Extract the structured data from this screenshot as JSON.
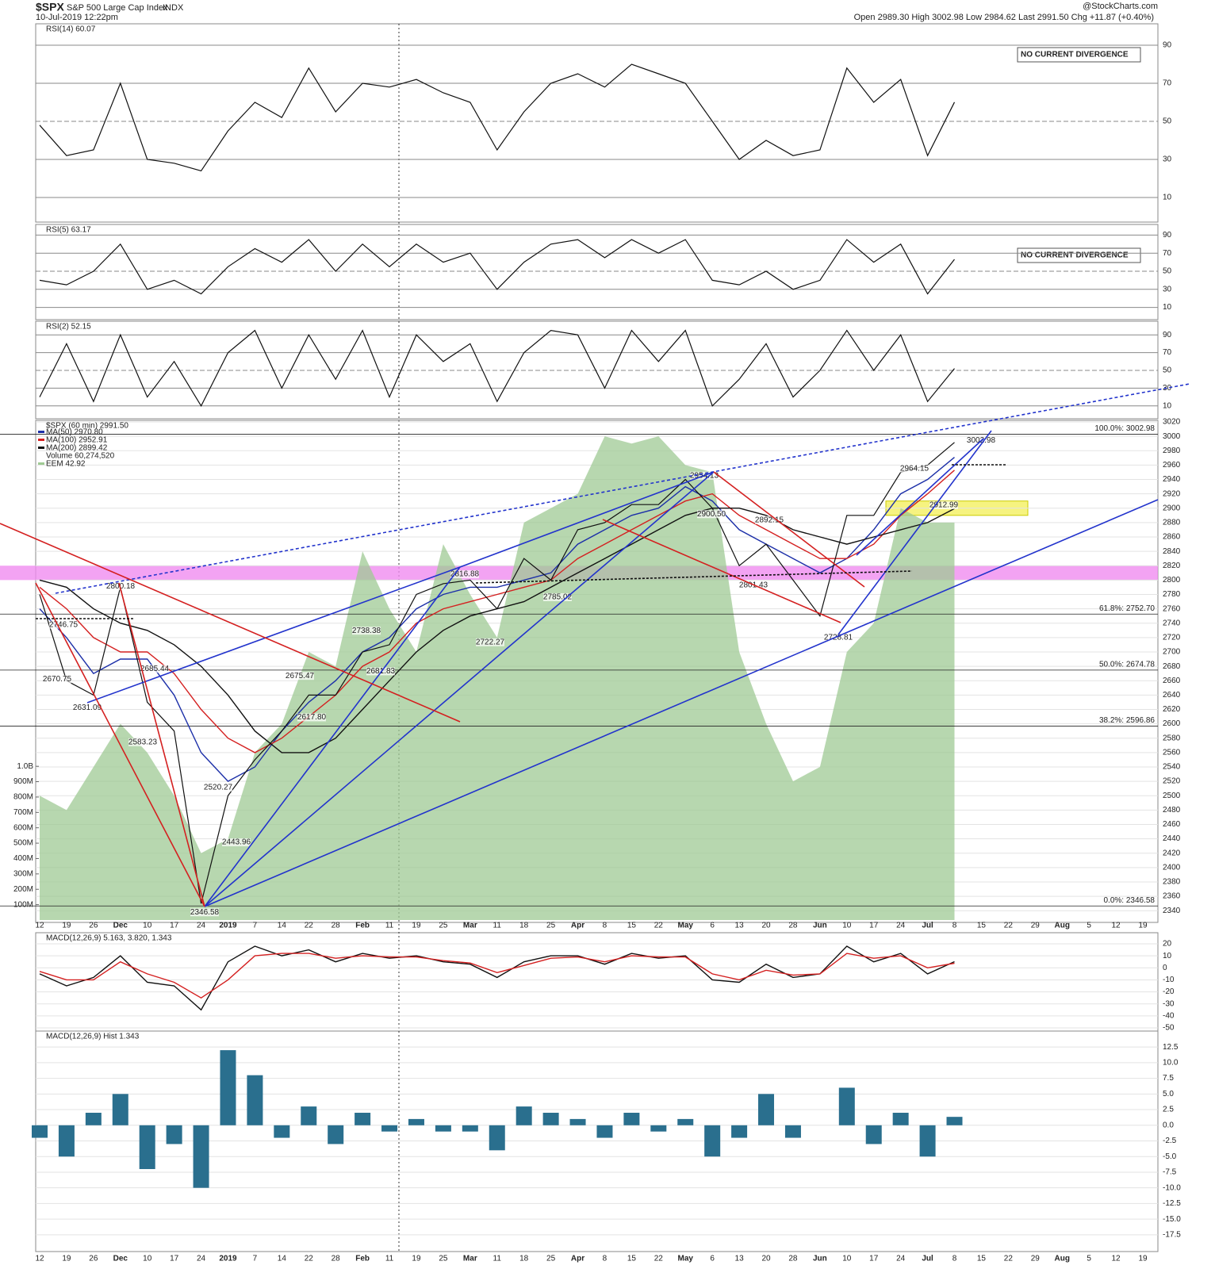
{
  "header": {
    "symbol": "$SPX",
    "name": "S&P 500 Large Cap Index",
    "exchange": "INDX",
    "date": "10-Jul-2019 12:22pm",
    "quote": "Open 2989.30  High 3002.98  Low 2984.62  Last 2991.50  Chg +11.87 (+0.40%)",
    "credit": "@StockCharts.com"
  },
  "chart_data": [
    {
      "type": "line",
      "title": "RSI(14) 60.07",
      "annotation": "NO CURRENT DIVERGENCE",
      "ylim": [
        0,
        100
      ],
      "yticks": [
        10,
        30,
        50,
        70,
        90
      ],
      "color": "#111111",
      "values": [
        48,
        32,
        35,
        70,
        30,
        28,
        24,
        45,
        60,
        52,
        78,
        55,
        70,
        68,
        72,
        65,
        60,
        35,
        55,
        70,
        75,
        68,
        80,
        75,
        70,
        50,
        30,
        40,
        32,
        35,
        78,
        60,
        72,
        32,
        60.07,
        null,
        null,
        null,
        null,
        null,
        null,
        null
      ]
    },
    {
      "type": "line",
      "title": "RSI(5) 63.17",
      "annotation": "NO CURRENT DIVERGENCE",
      "ylim": [
        0,
        100
      ],
      "yticks": [
        10,
        30,
        50,
        70,
        90
      ],
      "color": "#111111",
      "values": [
        40,
        35,
        50,
        80,
        30,
        40,
        25,
        55,
        75,
        60,
        85,
        50,
        80,
        55,
        80,
        60,
        70,
        30,
        60,
        80,
        85,
        65,
        85,
        70,
        85,
        40,
        35,
        50,
        30,
        40,
        85,
        60,
        80,
        25,
        63.17,
        null,
        null,
        null,
        null,
        null,
        null,
        null
      ]
    },
    {
      "type": "line",
      "title": "RSI(2) 52.15",
      "ylim": [
        0,
        100
      ],
      "yticks": [
        10,
        30,
        50,
        70,
        90
      ],
      "color": "#111111",
      "values": [
        20,
        80,
        15,
        90,
        20,
        60,
        10,
        70,
        95,
        30,
        90,
        40,
        95,
        20,
        90,
        60,
        80,
        15,
        70,
        95,
        90,
        30,
        95,
        60,
        95,
        10,
        40,
        80,
        20,
        50,
        95,
        50,
        90,
        15,
        52.15,
        null,
        null,
        null,
        null,
        null,
        null,
        null
      ]
    },
    {
      "type": "line",
      "title": "$SPX (60 min) 2991.50",
      "color": "#111111",
      "categories": [
        "12",
        "19",
        "26",
        "Dec",
        "10",
        "17",
        "24",
        "2019",
        "7",
        "14",
        "22",
        "28",
        "Feb",
        "11",
        "19",
        "25",
        "Mar",
        "11",
        "18",
        "25",
        "Apr",
        "8",
        "15",
        "22",
        "May",
        "6",
        "13",
        "20",
        "28",
        "Jun",
        "10",
        "17",
        "24",
        "Jul",
        "8",
        "15",
        "22",
        "29",
        "Aug",
        "5",
        "12",
        "19"
      ],
      "values": [
        2780,
        2660,
        2640,
        2790,
        2630,
        2590,
        2350,
        2500,
        2550,
        2590,
        2640,
        2640,
        2700,
        2710,
        2780,
        2795,
        2800,
        2760,
        2830,
        2800,
        2870,
        2880,
        2905,
        2905,
        2940,
        2900,
        2820,
        2850,
        2800,
        2750,
        2890,
        2890,
        2950,
        2960,
        2991.5,
        null,
        null,
        null,
        null,
        null,
        null,
        null
      ],
      "series": [
        {
          "name": "MA(50) 2970.80",
          "color": "#1c2fa8",
          "values": [
            2760,
            2720,
            2670,
            2690,
            2690,
            2640,
            2560,
            2520,
            2540,
            2590,
            2630,
            2660,
            2700,
            2720,
            2760,
            2780,
            2790,
            2790,
            2800,
            2810,
            2850,
            2870,
            2890,
            2900,
            2930,
            2910,
            2870,
            2850,
            2830,
            2810,
            2830,
            2870,
            2920,
            2940,
            2970.8,
            null,
            null,
            null,
            null,
            null,
            null,
            null
          ]
        },
        {
          "name": "MA(100) 2952.91",
          "color": "#d42020",
          "values": [
            2790,
            2760,
            2720,
            2700,
            2700,
            2670,
            2620,
            2580,
            2560,
            2580,
            2610,
            2640,
            2680,
            2700,
            2740,
            2760,
            2770,
            2780,
            2790,
            2800,
            2830,
            2850,
            2870,
            2890,
            2910,
            2920,
            2890,
            2870,
            2850,
            2830,
            2830,
            2850,
            2890,
            2920,
            2952.91,
            null,
            null,
            null,
            null,
            null,
            null,
            null
          ]
        },
        {
          "name": "MA(200) 2899.42",
          "color": "#111111",
          "values": [
            2800,
            2790,
            2760,
            2740,
            2730,
            2710,
            2680,
            2640,
            2590,
            2560,
            2560,
            2580,
            2620,
            2660,
            2700,
            2730,
            2750,
            2760,
            2770,
            2790,
            2810,
            2830,
            2850,
            2870,
            2890,
            2900,
            2900,
            2890,
            2870,
            2860,
            2850,
            2860,
            2870,
            2880,
            2899.42,
            null,
            null,
            null,
            null,
            null,
            null,
            null
          ]
        },
        {
          "name": "EEM 42.92",
          "type": "area",
          "color": "#9fca94",
          "values": [
            2500,
            2480,
            2540,
            2600,
            2560,
            2500,
            2420,
            2440,
            2560,
            2600,
            2700,
            2680,
            2840,
            2760,
            2700,
            2850,
            2780,
            2720,
            2880,
            2900,
            2920,
            3000,
            2990,
            3000,
            2960,
            2950,
            2700,
            2600,
            2520,
            2540,
            2700,
            2740,
            2900,
            2880,
            2880,
            null,
            null,
            null,
            null,
            null,
            null,
            null
          ]
        }
      ],
      "volume_legend": "Volume 60,274,520",
      "ylim": [
        2327,
        3020
      ],
      "yticks": [
        2340,
        2360,
        2380,
        2400,
        2420,
        2440,
        2460,
        2480,
        2500,
        2520,
        2540,
        2560,
        2580,
        2600,
        2620,
        2640,
        2660,
        2680,
        2700,
        2720,
        2740,
        2760,
        2780,
        2800,
        2820,
        2840,
        2860,
        2880,
        2900,
        2920,
        2940,
        2960,
        2980,
        3000,
        3020
      ],
      "y2lim": [
        0,
        3240000000
      ],
      "y2ticks": [
        {
          "value": 1000000000,
          "label": "1.0B"
        },
        {
          "value": 900000000,
          "label": "900M"
        },
        {
          "value": 800000000,
          "label": "800M"
        },
        {
          "value": 700000000,
          "label": "700M"
        },
        {
          "value": 600000000,
          "label": "600M"
        },
        {
          "value": 500000000,
          "label": "500M"
        },
        {
          "value": 400000000,
          "label": "400M"
        },
        {
          "value": 300000000,
          "label": "300M"
        },
        {
          "value": 200000000,
          "label": "200M"
        },
        {
          "value": 100000000,
          "label": "100M"
        }
      ],
      "zones": [
        {
          "from": 2800,
          "to": 2820,
          "color": "#f08cf0"
        },
        {
          "from": 2890,
          "to": 2910,
          "color": "#f4f060"
        }
      ],
      "fib_levels": [
        {
          "value": 3002.98,
          "label": "100.0%: 3002.98"
        },
        {
          "value": 2752.7,
          "label": "61.8%: 2752.70"
        },
        {
          "value": 2674.78,
          "label": "50.0%: 2674.78"
        },
        {
          "value": 2596.86,
          "label": "38.2%: 2596.86"
        },
        {
          "value": 2346.58,
          "label": "0.0%: 2346.58"
        }
      ],
      "annotations": [
        {
          "label": "2346.58",
          "value": 2346.58
        },
        {
          "label": "2443.96",
          "value": 2443.96
        },
        {
          "label": "2520.27",
          "value": 2520.27
        },
        {
          "label": "2583.23",
          "value": 2583.23
        },
        {
          "label": "2631.09",
          "value": 2631.09
        },
        {
          "label": "2670.75",
          "value": 2670.75
        },
        {
          "label": "2746.75",
          "value": 2746.75
        },
        {
          "label": "2800.18",
          "value": 2800.18
        },
        {
          "label": "2685.44",
          "value": 2685.44
        },
        {
          "label": "2675.47",
          "value": 2675.47
        },
        {
          "label": "2617.80",
          "value": 2617.8
        },
        {
          "label": "2738.38",
          "value": 2738.38
        },
        {
          "label": "2681.83",
          "value": 2681.83
        },
        {
          "label": "2816.88",
          "value": 2816.88
        },
        {
          "label": "2722.27",
          "value": 2722.27
        },
        {
          "label": "2785.02",
          "value": 2785.02
        },
        {
          "label": "2954.13",
          "value": 2954.13
        },
        {
          "label": "2900.50",
          "value": 2900.5
        },
        {
          "label": "2892.15",
          "value": 2892.15
        },
        {
          "label": "2801.43",
          "value": 2801.43
        },
        {
          "label": "2728.81",
          "value": 2728.81
        },
        {
          "label": "2964.15",
          "value": 2964.15
        },
        {
          "label": "2912.99",
          "value": 2912.99
        },
        {
          "label": "3002.98",
          "value": 3002.98
        }
      ]
    },
    {
      "type": "line",
      "title": "MACD(12,26,9) 5.163, 3.820, 1.343",
      "ylim": [
        -52.6,
        27.9
      ],
      "yticks": [
        -50,
        -40,
        -30,
        -20,
        -10,
        0,
        10,
        20
      ],
      "series": [
        {
          "name": "MACD",
          "color": "#111111",
          "values": [
            -5,
            -15,
            -8,
            10,
            -12,
            -15,
            -35,
            5,
            18,
            10,
            15,
            5,
            12,
            8,
            10,
            5,
            3,
            -8,
            5,
            10,
            10,
            3,
            12,
            8,
            10,
            -10,
            -12,
            3,
            -8,
            -5,
            18,
            5,
            12,
            -5,
            5.163,
            null,
            null,
            null,
            null,
            null,
            null,
            null
          ]
        },
        {
          "name": "Signal",
          "color": "#d42020",
          "values": [
            -3,
            -10,
            -10,
            5,
            -5,
            -12,
            -25,
            -10,
            10,
            12,
            12,
            8,
            10,
            9,
            9,
            6,
            4,
            -4,
            2,
            8,
            9,
            5,
            10,
            9,
            9,
            -5,
            -10,
            -2,
            -6,
            -5,
            12,
            8,
            10,
            0,
            3.82,
            null,
            null,
            null,
            null,
            null,
            null,
            null
          ]
        }
      ]
    },
    {
      "type": "bar",
      "title": "MACD(12,26,9) Hist 1.343",
      "color": "#2a6f8e",
      "ylim": [
        -19.8,
        14.8
      ],
      "yticks": [
        12.5,
        {
          "value": 10,
          "label": "10.0"
        },
        7.5,
        {
          "value": 5,
          "label": "5.0"
        },
        2.5,
        {
          "value": 0,
          "label": "0.0"
        },
        -2.5,
        {
          "value": -5,
          "label": "-5.0"
        },
        -7.5,
        {
          "value": -10,
          "label": "-10.0"
        },
        -12.5,
        {
          "value": -15,
          "label": "-15.0"
        },
        -17.5
      ],
      "values": [
        -2,
        -5,
        2,
        5,
        -7,
        -3,
        -10,
        12,
        8,
        -2,
        3,
        -3,
        2,
        -1,
        1,
        -1,
        -1,
        -4,
        3,
        2,
        1,
        -2,
        2,
        -1,
        1,
        -5,
        -2,
        5,
        -2,
        0,
        6,
        -3,
        2,
        -5,
        1.343,
        null,
        null,
        null,
        null,
        null,
        null,
        null
      ]
    }
  ]
}
